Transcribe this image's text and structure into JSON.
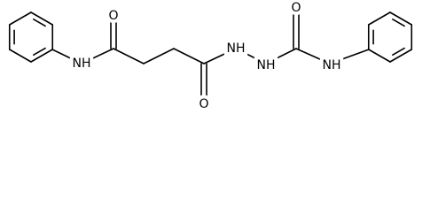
{
  "atoms": [
    {
      "label": "NH"
    },
    {
      "label": "O"
    },
    {
      "label": "O"
    },
    {
      "label": "NH"
    },
    {
      "label": "NH"
    },
    {
      "label": "O"
    },
    {
      "label": "NH"
    }
  ]
}
